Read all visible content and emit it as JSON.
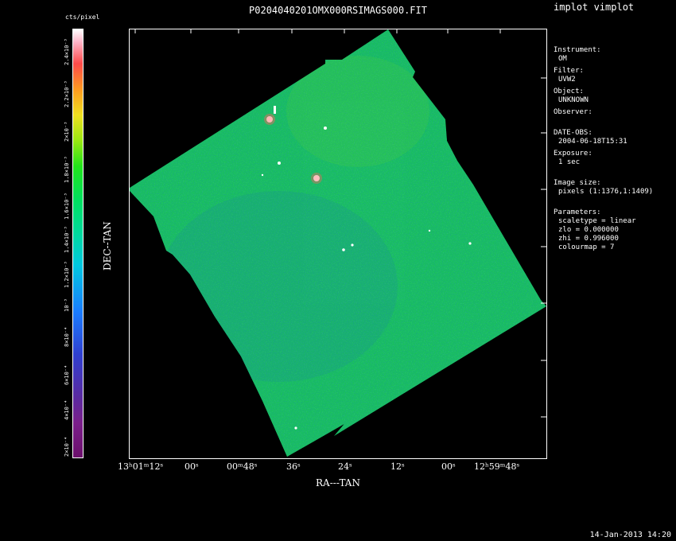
{
  "title": "P0204040201OMX000RSIMAGS000.FIT",
  "program": "implot vimplot",
  "colorbar": {
    "unit": "cts/pixel",
    "ticks": [
      "2.4×10⁻³",
      "2.2×10⁻³",
      "2×10⁻³",
      "1.8×10⁻³",
      "1.6×10⁻³",
      "1.4×10⁻³",
      "1.2×10⁻³",
      "10⁻³",
      "8×10⁻⁴",
      "6×10⁻⁴",
      "4×10⁻⁴",
      "2×10⁻⁴"
    ]
  },
  "axes": {
    "ylabel": "DEC--TAN",
    "xlabel": "RA---TAN",
    "xticks": [
      "13ʰ01ᵐ12ˢ",
      "00ˢ",
      "00ᵐ48ˢ",
      "36ˢ",
      "24ˢ",
      "12ˢ",
      "00ˢ",
      "12ʰ59ᵐ48ˢ"
    ]
  },
  "info": {
    "instrument_label": "Instrument:",
    "instrument": "OM",
    "filter_label": "Filter:",
    "filter": "UVW2",
    "object_label": "Object:",
    "object": "UNKNOWN",
    "observer_label": "Observer:",
    "date_label": "DATE-OBS:",
    "date": "2004-06-18T15:31",
    "exposure_label": "Exposure:",
    "exposure": "1 sec",
    "size_label": "Image size:",
    "size": "pixels (1:1376,1:1409)",
    "params_label": "Parameters:",
    "scaletype": "scaletype = linear",
    "zlo": "zlo = 0.000000",
    "zhi": "zhi = 0.996000",
    "colourmap": "colourmap = 7"
  },
  "timestamp": "14-Jan-2013 14:20"
}
